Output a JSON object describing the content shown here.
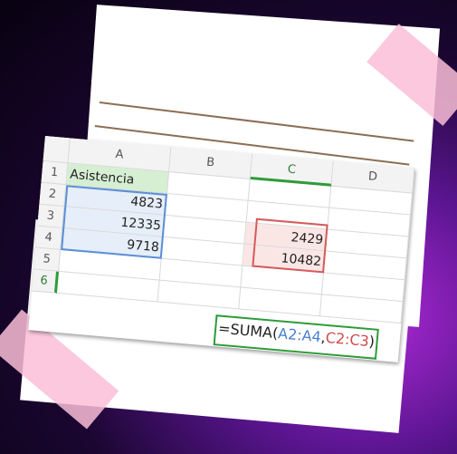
{
  "columns": [
    "A",
    "B",
    "C",
    "D"
  ],
  "rows": [
    1,
    2,
    3,
    4,
    5,
    6
  ],
  "cells": {
    "A1": "Asistencia",
    "A2": 4823,
    "A3": 12335,
    "A4": 9718,
    "C3": 2429,
    "C4": 10482
  },
  "formula": [
    "=SUMA(",
    "A2:A4",
    ",",
    "C2:C3",
    ")"
  ]
}
